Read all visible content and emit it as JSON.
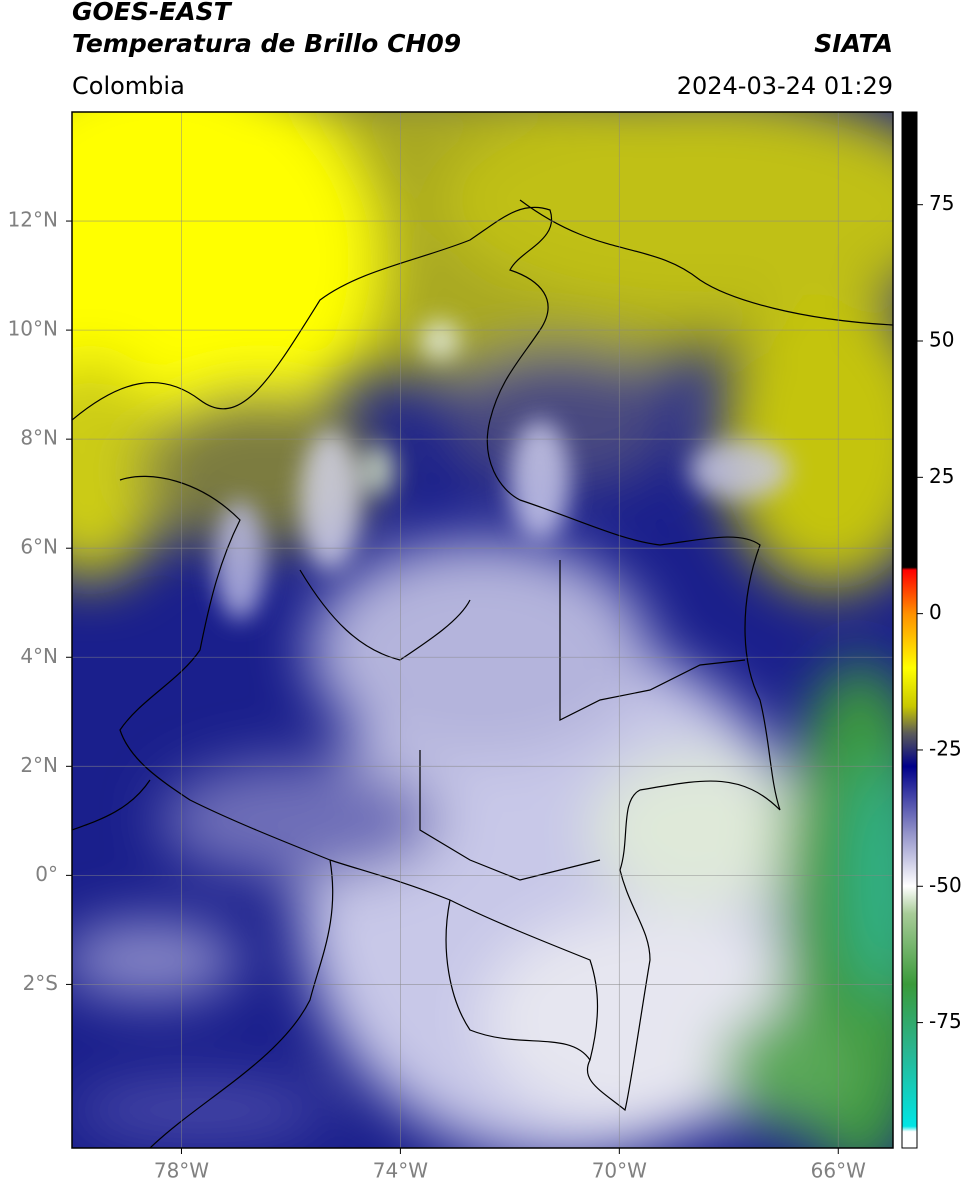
{
  "header": {
    "satellite": "GOES-EAST",
    "product": "Temperatura de Brillo CH09",
    "source": "SIATA",
    "region": "Colombia",
    "datetime": "2024-03-24 01:29"
  },
  "map": {
    "xlim": [
      -80,
      -65
    ],
    "ylim": [
      -5,
      14
    ],
    "grid": true,
    "lon_ticks": [
      {
        "value": -78,
        "label": "78°W"
      },
      {
        "value": -74,
        "label": "74°W"
      },
      {
        "value": -70,
        "label": "70°W"
      },
      {
        "value": -66,
        "label": "66°W"
      }
    ],
    "lat_ticks": [
      {
        "value": 12,
        "label": "12°N"
      },
      {
        "value": 10,
        "label": "10°N"
      },
      {
        "value": 8,
        "label": "8°N"
      },
      {
        "value": 6,
        "label": "6°N"
      },
      {
        "value": 4,
        "label": "4°N"
      },
      {
        "value": 2,
        "label": "2°N"
      },
      {
        "value": 0,
        "label": "0°"
      },
      {
        "value": -2,
        "label": "2°S"
      }
    ]
  },
  "colorbar": {
    "clim": [
      -98,
      92
    ],
    "ticks": [
      75,
      50,
      25,
      0,
      -25,
      -50,
      -75
    ],
    "colormap": [
      {
        "value": -98,
        "color": "#ffffff"
      },
      {
        "value": -95,
        "color": "#ffffff"
      },
      {
        "value": -94,
        "color": "#00e5e5"
      },
      {
        "value": -80,
        "color": "#2ab590"
      },
      {
        "value": -68,
        "color": "#3a9a3a"
      },
      {
        "value": -55,
        "color": "#a8cc98"
      },
      {
        "value": -50,
        "color": "#ffffff"
      },
      {
        "value": -40,
        "color": "#9090c8"
      },
      {
        "value": -28,
        "color": "#00008a"
      },
      {
        "value": -22,
        "color": "#5a5a5a"
      },
      {
        "value": -17,
        "color": "#c8c800"
      },
      {
        "value": -10,
        "color": "#ffff00"
      },
      {
        "value": 0,
        "color": "#ff9000"
      },
      {
        "value": 8,
        "color": "#ff0000"
      },
      {
        "value": 8.5,
        "color": "#000000"
      },
      {
        "value": 92,
        "color": "#000000"
      }
    ]
  }
}
